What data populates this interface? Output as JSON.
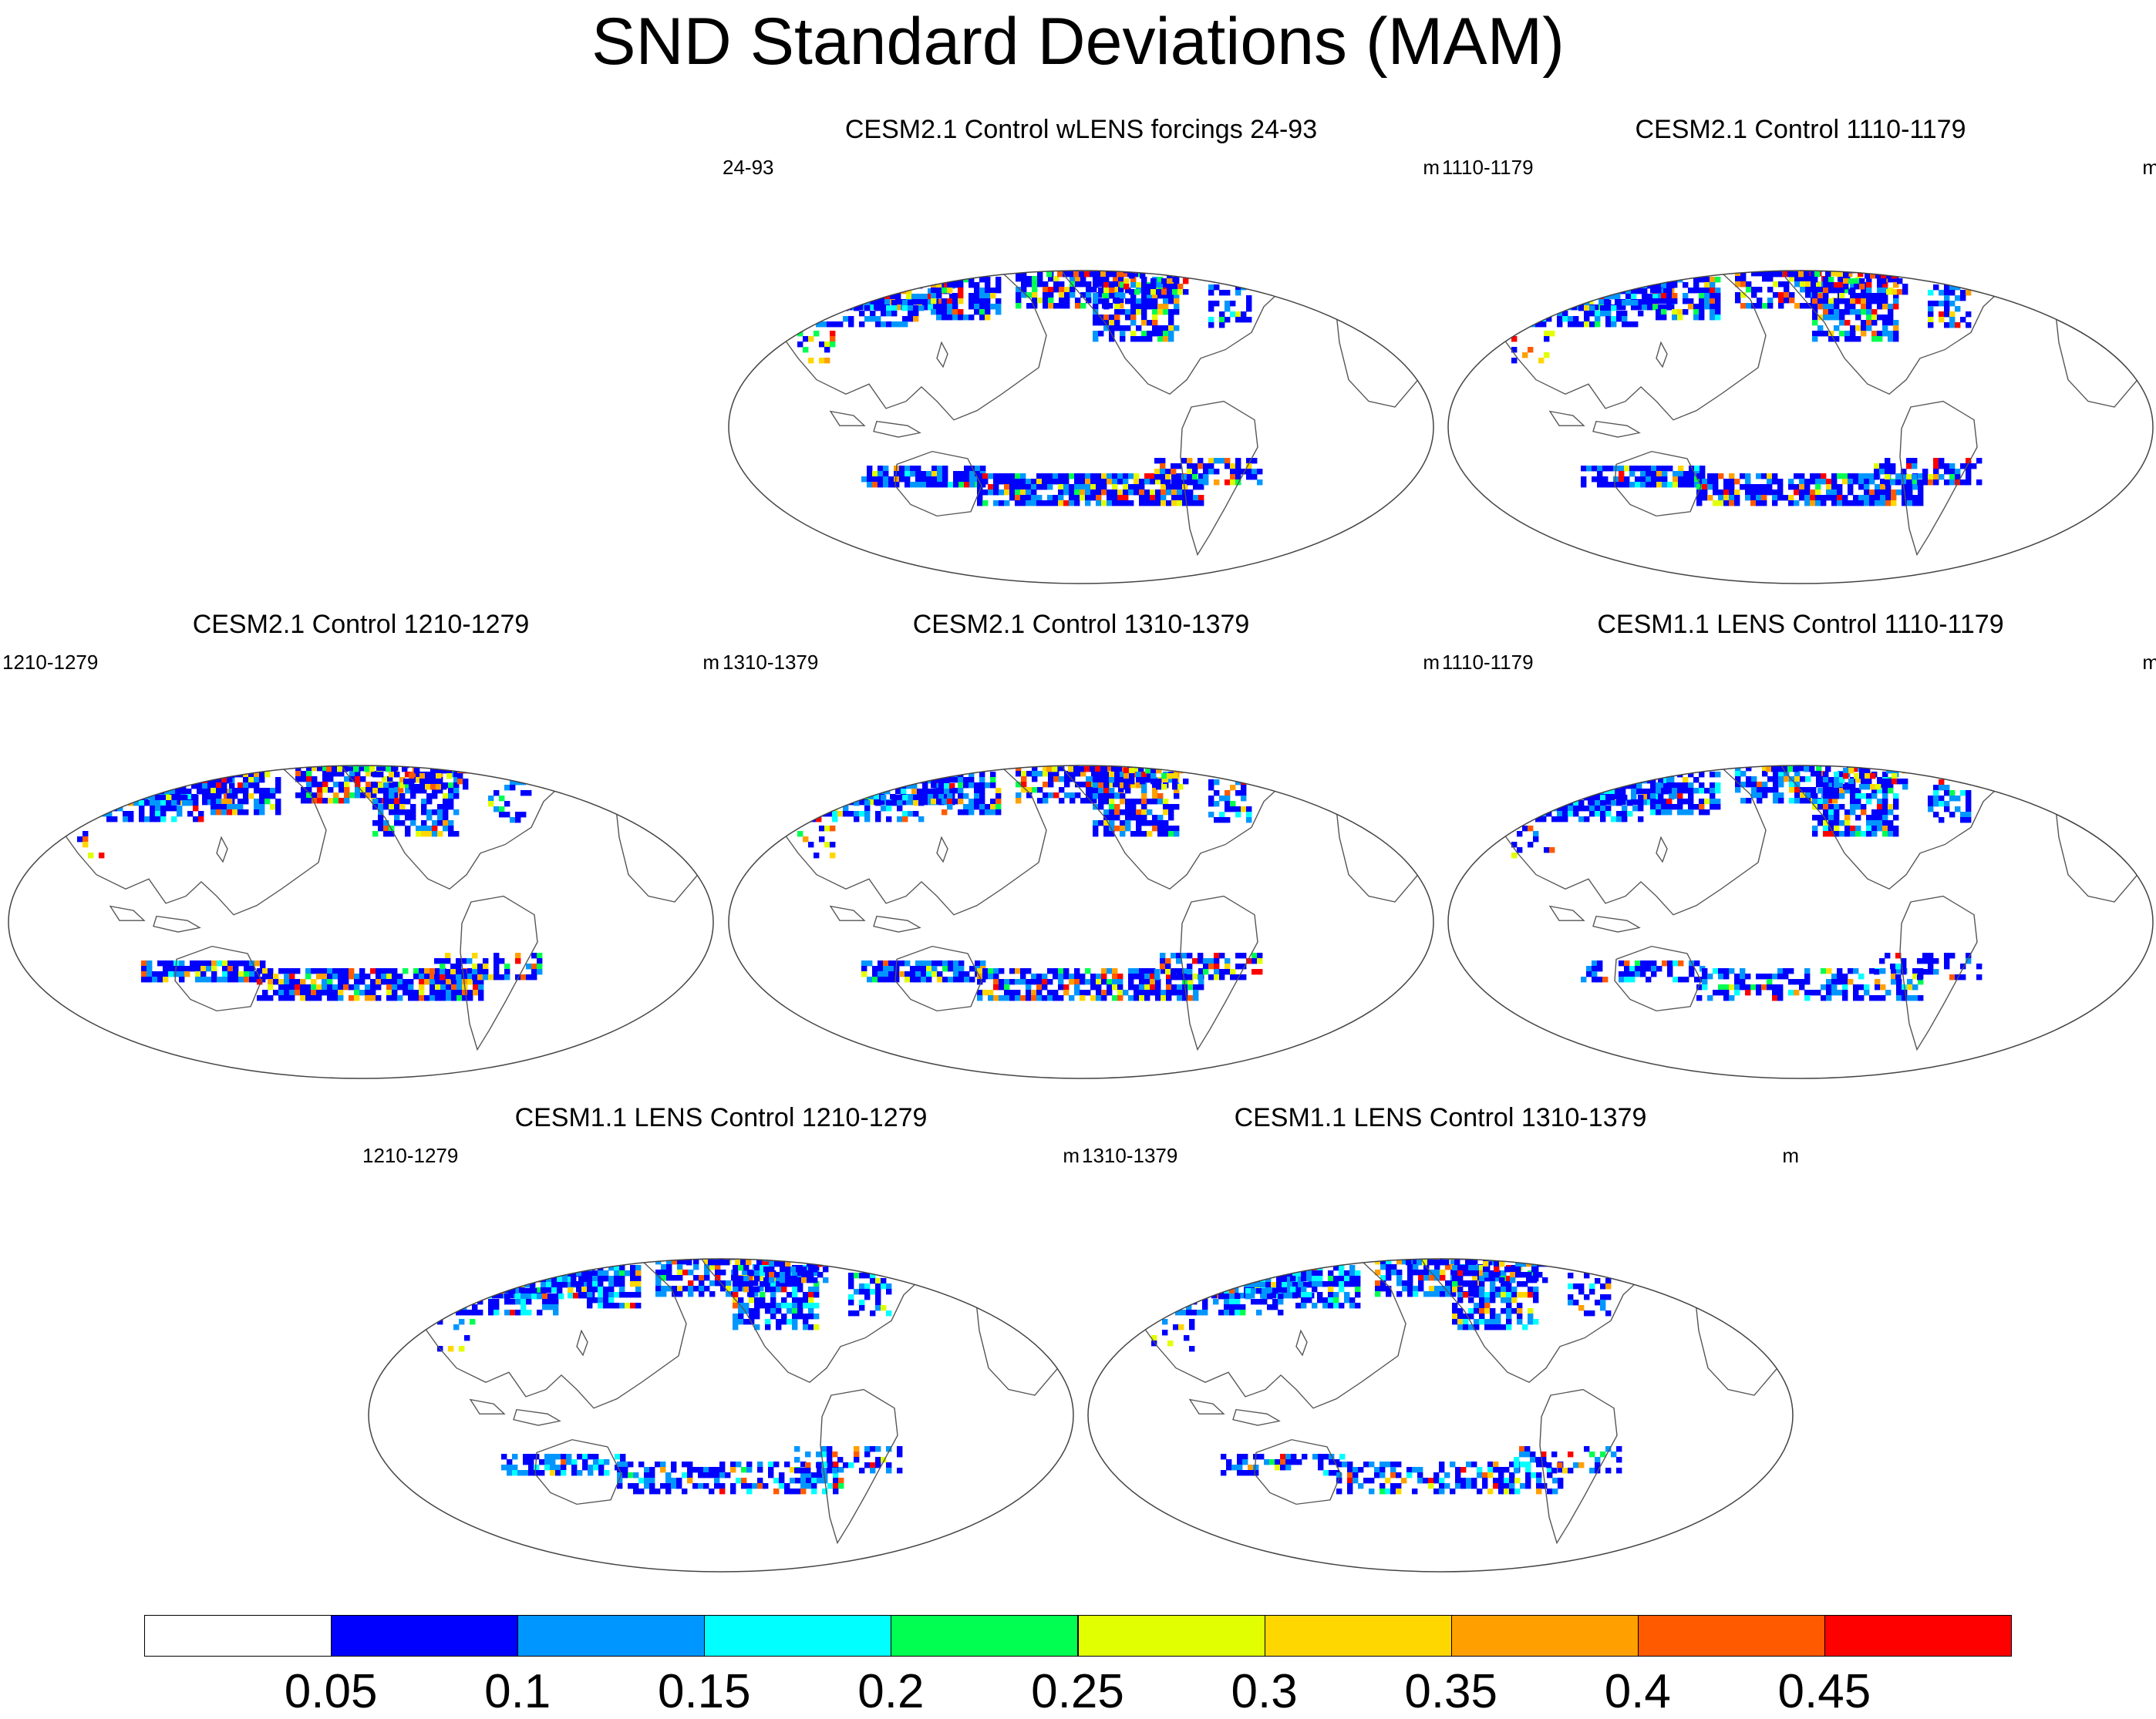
{
  "title": "SND Standard Deviations (MAM)",
  "panels": [
    {
      "id": "p1",
      "title": "CESM2.1 Control wLENS forcings 24-93",
      "left_label": "24-93",
      "units": "m",
      "intensity": 1.0,
      "ant": 1.0
    },
    {
      "id": "p2",
      "title": "CESM2.1 Control 1110-1179",
      "left_label": "1110-1179",
      "units": "m",
      "intensity": 0.95,
      "ant": 0.85
    },
    {
      "id": "p3",
      "title": "CESM2.1 Control 1210-1279",
      "left_label": "1210-1279",
      "units": "m",
      "intensity": 1.0,
      "ant": 1.0
    },
    {
      "id": "p4",
      "title": "CESM2.1 Control 1310-1379",
      "left_label": "1310-1379",
      "units": "m",
      "intensity": 0.95,
      "ant": 0.9
    },
    {
      "id": "p5",
      "title": "CESM1.1 LENS Control 1110-1179",
      "left_label": "1110-1179",
      "units": "m",
      "intensity": 0.45,
      "ant": 0.35
    },
    {
      "id": "p6",
      "title": "CESM1.1 LENS Control 1210-1279",
      "left_label": "1210-1279",
      "units": "m",
      "intensity": 0.5,
      "ant": 0.4
    },
    {
      "id": "p7",
      "title": "CESM1.1 LENS Control 1310-1379",
      "left_label": "1310-1379",
      "units": "m",
      "intensity": 0.5,
      "ant": 0.35
    }
  ],
  "colorbar": {
    "colors": [
      "#ffffff",
      "#0000ff",
      "#0096ff",
      "#00ffff",
      "#00ff50",
      "#e1ff00",
      "#ffd700",
      "#ffa000",
      "#ff5a00",
      "#ff0000"
    ],
    "labels": [
      "0.05",
      "0.1",
      "0.15",
      "0.2",
      "0.25",
      "0.3",
      "0.35",
      "0.4",
      "0.45"
    ]
  }
}
